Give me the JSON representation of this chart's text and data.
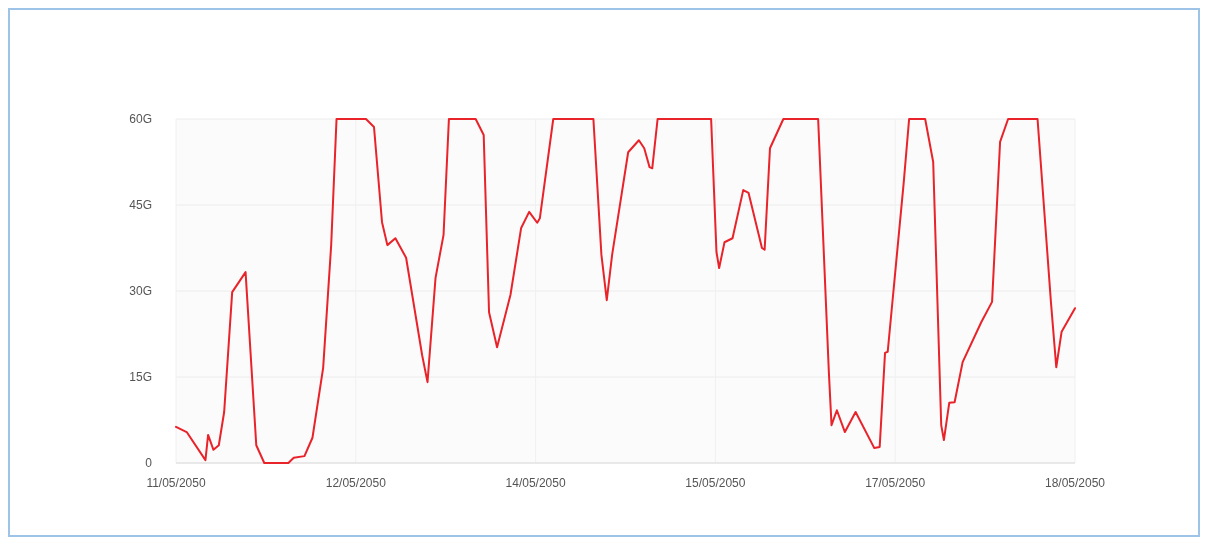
{
  "chart_data": {
    "type": "line",
    "grid": true,
    "marker": "none",
    "line_style": "solid",
    "xlim": [
      "2050-05-11T12:00",
      "2050-05-18T12:00"
    ],
    "xticks": [
      {
        "value": "2050-05-11T12:00",
        "label": "11/05/2050"
      },
      {
        "value": "2050-05-12T21:36",
        "label": "12/05/2050"
      },
      {
        "value": "2050-05-14T07:12",
        "label": "14/05/2050"
      },
      {
        "value": "2050-05-15T16:48",
        "label": "15/05/2050"
      },
      {
        "value": "2050-05-17T02:24",
        "label": "17/05/2050"
      },
      {
        "value": "2050-05-18T12:00",
        "label": "18/05/2050"
      }
    ],
    "ylim": [
      0,
      60
    ],
    "yticks": [
      0,
      {
        "value": 15,
        "label": "15G"
      },
      {
        "value": 30,
        "label": "30G"
      },
      {
        "value": 45,
        "label": "45G"
      },
      {
        "value": 60,
        "label": "60G"
      }
    ],
    "series": [
      {
        "color": "#e8232a",
        "x": [
          "2050-05-11T12:00",
          "2050-05-11T14:00",
          "2050-05-11T17:30",
          "2050-05-11T18:00",
          "2050-05-11T19:00",
          "2050-05-11T20:00",
          "2050-05-11T21:00",
          "2050-05-11T22:30",
          "2050-05-12T01:00",
          "2050-05-12T03:00",
          "2050-05-12T04:30",
          "2050-05-12T09:00",
          "2050-05-12T10:00",
          "2050-05-12T12:00",
          "2050-05-12T13:30",
          "2050-05-12T15:30",
          "2050-05-12T17:00",
          "2050-05-12T18:00",
          "2050-05-12T23:30",
          "2050-05-13T01:00",
          "2050-05-13T02:30",
          "2050-05-13T03:30",
          "2050-05-13T05:00",
          "2050-05-13T07:00",
          "2050-05-13T10:00",
          "2050-05-13T11:00",
          "2050-05-13T12:30",
          "2050-05-13T14:00",
          "2050-05-13T15:00",
          "2050-05-13T20:00",
          "2050-05-13T21:30",
          "2050-05-13T22:30",
          "2050-05-14T00:00",
          "2050-05-14T02:30",
          "2050-05-14T04:30",
          "2050-05-14T06:00",
          "2050-05-14T07:30",
          "2050-05-14T08:00",
          "2050-05-14T10:30",
          "2050-05-14T18:00",
          "2050-05-14T19:30",
          "2050-05-14T20:30",
          "2050-05-14T21:30",
          "2050-05-15T00:30",
          "2050-05-15T02:30",
          "2050-05-15T03:30",
          "2050-05-15T04:30",
          "2050-05-15T05:00",
          "2050-05-15T06:00",
          "2050-05-15T16:00",
          "2050-05-15T17:00",
          "2050-05-15T17:30",
          "2050-05-15T18:30",
          "2050-05-15T20:00",
          "2050-05-15T22:00",
          "2050-05-15T23:00",
          "2050-05-16T01:30",
          "2050-05-16T02:00",
          "2050-05-16T03:00",
          "2050-05-16T05:30",
          "2050-05-16T12:00",
          "2050-05-16T14:00",
          "2050-05-16T14:30",
          "2050-05-16T15:30",
          "2050-05-16T17:00",
          "2050-05-16T19:00",
          "2050-05-16T22:30",
          "2050-05-16T23:30",
          "2050-05-17T00:30",
          "2050-05-17T01:00",
          "2050-05-17T04:00",
          "2050-05-17T05:00",
          "2050-05-17T08:00",
          "2050-05-17T09:30",
          "2050-05-17T11:00",
          "2050-05-17T11:30",
          "2050-05-17T12:30",
          "2050-05-17T13:30",
          "2050-05-17T15:00",
          "2050-05-17T18:30",
          "2050-05-17T20:30",
          "2050-05-17T22:00",
          "2050-05-17T23:30",
          "2050-05-18T05:00",
          "2050-05-18T07:30",
          "2050-05-18T08:30",
          "2050-05-18T09:30",
          "2050-05-18T12:00"
        ],
        "values": [
          6.3,
          5.4,
          0.5,
          4.9,
          2.3,
          3.1,
          8.9,
          29.8,
          33.3,
          3.1,
          0,
          0,
          0.9,
          1.2,
          4.4,
          16.6,
          38,
          60,
          60,
          58.6,
          42,
          38,
          39.2,
          35.8,
          18.8,
          14.1,
          32.3,
          39.8,
          60,
          60,
          57.2,
          26.3,
          20.2,
          29.3,
          41,
          43.8,
          41.9,
          42.7,
          60,
          60,
          36.3,
          28.4,
          36.3,
          54.2,
          56.3,
          54.9,
          51.6,
          51.4,
          60,
          60,
          36.8,
          34,
          38.5,
          39.2,
          47.6,
          47.1,
          37.5,
          37.2,
          54.9,
          60,
          60,
          15.9,
          6.6,
          9.2,
          5.4,
          8.9,
          2.6,
          2.8,
          19.2,
          19.4,
          49,
          60,
          60,
          52.5,
          6.6,
          4,
          10.5,
          10.6,
          17.6,
          24.6,
          28.1,
          56,
          60,
          60,
          28.1,
          16.7,
          22.9,
          27
        ]
      }
    ]
  }
}
